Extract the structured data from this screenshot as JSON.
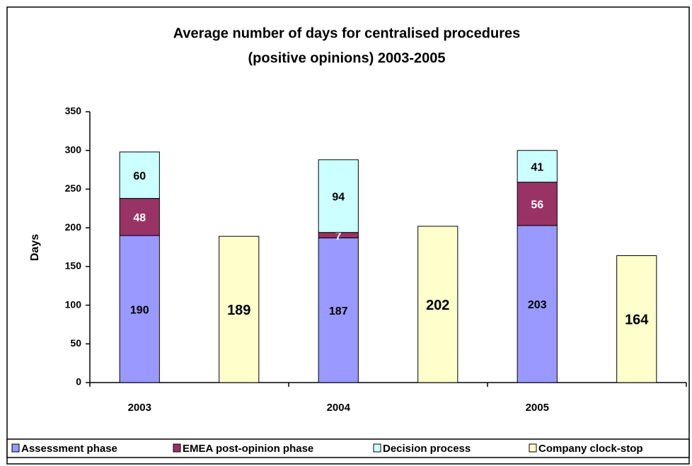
{
  "chart_data": {
    "type": "bar",
    "title": [
      "Average number of days for centralised procedures",
      "(positive opinions) 2003-2005"
    ],
    "y_label": "Days",
    "categories": [
      "2003",
      "2004",
      "2005"
    ],
    "series": [
      {
        "name": "Assessment phase",
        "color": "#9999ff",
        "label_color": "#000000",
        "stacked": true,
        "values": [
          190,
          187,
          203
        ]
      },
      {
        "name": "EMEA post-opinion phase",
        "color": "#993366",
        "label_color": "#ffffff",
        "stacked": true,
        "values": [
          48,
          7,
          56
        ]
      },
      {
        "name": "Decision process",
        "color": "#ccffff",
        "label_color": "#000000",
        "stacked": true,
        "values": [
          60,
          94,
          41
        ]
      },
      {
        "name": "Company clock-stop",
        "color": "#ffffcc",
        "label_color": "#000000",
        "stacked": false,
        "values": [
          189,
          202,
          164
        ]
      }
    ],
    "ylim": [
      0,
      350
    ],
    "yticks": [
      0,
      50,
      100,
      150,
      200,
      250,
      300,
      350
    ],
    "grid": false,
    "legend": "bottom"
  }
}
